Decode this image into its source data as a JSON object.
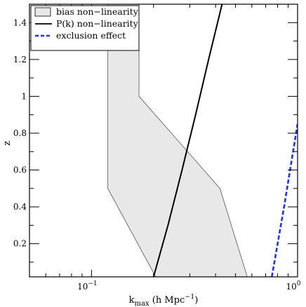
{
  "chart_data": {
    "type": "area",
    "xlabel": {
      "main": "k",
      "sub": "max",
      "rest": " (h Mpc",
      "sup": "−1",
      "close": ")"
    },
    "ylabel": "z",
    "x_scale": "log",
    "xlim": [
      0.05,
      1.0
    ],
    "ylim": [
      0.02,
      1.5
    ],
    "x_ticks": [
      {
        "value": 0.1,
        "base": "10",
        "exp": "−1"
      },
      {
        "value": 1.0,
        "base": "10",
        "exp": "0"
      }
    ],
    "y_ticks": [
      {
        "value": 0.2,
        "label": "0.2"
      },
      {
        "value": 0.4,
        "label": "0.4"
      },
      {
        "value": 0.6,
        "label": "0.6"
      },
      {
        "value": 0.8,
        "label": "0.8"
      },
      {
        "value": 1.0,
        "label": "1"
      },
      {
        "value": 1.2,
        "label": "1.2"
      },
      {
        "value": 1.4,
        "label": "1.4"
      }
    ],
    "grid": false,
    "legend_position": "top-left",
    "series": [
      {
        "name": "bias non−linearity",
        "kind": "band",
        "fill": "#e8e8e8",
        "stroke": "#555555",
        "lower_k": [
          [
            0.12,
            1.5
          ],
          [
            0.12,
            0.5
          ],
          [
            0.205,
            0.02
          ]
        ],
        "upper_k": [
          [
            0.17,
            1.5
          ],
          [
            0.17,
            1.0
          ],
          [
            0.42,
            0.5
          ],
          [
            0.57,
            0.02
          ]
        ]
      },
      {
        "name": "P(k) non−linearity",
        "kind": "line",
        "color": "#000000",
        "dash": "none",
        "points": [
          [
            0.2,
            0.02
          ],
          [
            0.235,
            0.3
          ],
          [
            0.275,
            0.6
          ],
          [
            0.32,
            0.9
          ],
          [
            0.37,
            1.2
          ],
          [
            0.43,
            1.5
          ]
        ]
      },
      {
        "name": "exclusion effect",
        "kind": "line",
        "color": "#2233dd",
        "dash": "dashed",
        "points": [
          [
            0.75,
            0.02
          ],
          [
            0.86,
            0.4
          ],
          [
            1.0,
            0.85
          ]
        ]
      }
    ]
  }
}
